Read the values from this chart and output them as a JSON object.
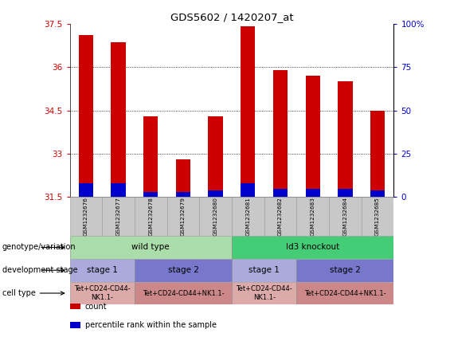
{
  "title": "GDS5602 / 1420207_at",
  "samples": [
    "GSM1232676",
    "GSM1232677",
    "GSM1232678",
    "GSM1232679",
    "GSM1232680",
    "GSM1232681",
    "GSM1232682",
    "GSM1232683",
    "GSM1232684",
    "GSM1232685"
  ],
  "count_values": [
    37.1,
    36.85,
    34.3,
    32.8,
    34.3,
    37.4,
    35.9,
    35.7,
    35.5,
    34.5
  ],
  "percentile_values": [
    8,
    8,
    3,
    3,
    4,
    8,
    5,
    5,
    5,
    4
  ],
  "y_min": 31.5,
  "y_max": 37.5,
  "y_ticks": [
    31.5,
    33.0,
    34.5,
    36.0,
    37.5
  ],
  "y_tick_labels": [
    "31.5",
    "33",
    "34.5",
    "36",
    "37.5"
  ],
  "right_y_ticks": [
    0,
    25,
    50,
    75,
    100
  ],
  "right_y_labels": [
    "0",
    "25",
    "50",
    "75",
    "100%"
  ],
  "bar_color": "#cc0000",
  "percentile_color": "#0000cc",
  "left_label_color": "#cc0000",
  "right_label_color": "#0000cc",
  "genotype_groups": [
    {
      "label": "wild type",
      "start": 0,
      "end": 5,
      "color": "#aaddaa"
    },
    {
      "label": "Id3 knockout",
      "start": 5,
      "end": 10,
      "color": "#44cc77"
    }
  ],
  "stage_groups": [
    {
      "label": "stage 1",
      "start": 0,
      "end": 2,
      "color": "#aaaadd"
    },
    {
      "label": "stage 2",
      "start": 2,
      "end": 5,
      "color": "#7777cc"
    },
    {
      "label": "stage 1",
      "start": 5,
      "end": 7,
      "color": "#aaaadd"
    },
    {
      "label": "stage 2",
      "start": 7,
      "end": 10,
      "color": "#7777cc"
    }
  ],
  "celltype_groups": [
    {
      "label": "Tet+CD24-CD44-\nNK1.1-",
      "start": 0,
      "end": 2,
      "color": "#ddaaaa"
    },
    {
      "label": "Tet+CD24-CD44+NK1.1-",
      "start": 2,
      "end": 5,
      "color": "#cc8888"
    },
    {
      "label": "Tet+CD24-CD44-\nNK1.1-",
      "start": 5,
      "end": 7,
      "color": "#ddaaaa"
    },
    {
      "label": "Tet+CD24-CD44+NK1.1-",
      "start": 7,
      "end": 10,
      "color": "#cc8888"
    }
  ],
  "row_labels": [
    "genotype/variation",
    "development stage",
    "cell type"
  ],
  "legend_items": [
    {
      "label": "count",
      "color": "#cc0000"
    },
    {
      "label": "percentile rank within the sample",
      "color": "#0000cc"
    }
  ]
}
